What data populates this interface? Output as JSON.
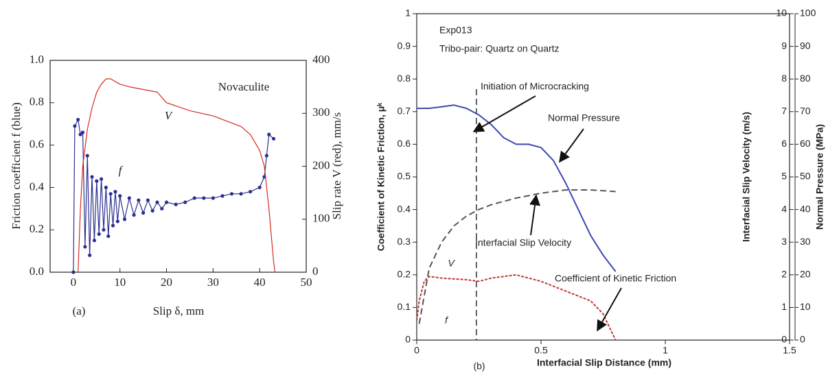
{
  "chart_data": [
    {
      "type": "line",
      "xlabel": "Slip δ, mm",
      "ylabel": "Friction coefficient f (blue)",
      "y2label": "Slip rate V (red), mm/s",
      "xlim": [
        -5,
        50
      ],
      "xticks": [
        0,
        10,
        20,
        30,
        40,
        50
      ],
      "ylim": [
        0,
        1
      ],
      "yticks": [
        {
          "value": 0,
          "label": "0.0"
        },
        {
          "value": 0.2,
          "label": "0.2"
        },
        {
          "value": 0.4,
          "label": "0.4"
        },
        {
          "value": 0.6,
          "label": "0.6"
        },
        {
          "value": 0.8,
          "label": "0.8"
        },
        {
          "value": 1,
          "label": "1.0"
        }
      ],
      "y2lim": [
        0,
        400
      ],
      "y2ticks": [
        0,
        100,
        200,
        300,
        400
      ],
      "annotations": [
        "Novaculite",
        "(a)"
      ],
      "series": [
        {
          "name": "f",
          "color": "#2b2f8f",
          "marker": true,
          "x": [
            0,
            0.3,
            1,
            1.5,
            2,
            2.5,
            3,
            3.5,
            4,
            4.5,
            5,
            5.5,
            6,
            6.5,
            7,
            7.5,
            8,
            8.5,
            9,
            9.5,
            10,
            11,
            12,
            13,
            14,
            15,
            16,
            17,
            18,
            19,
            20,
            22,
            24,
            26,
            28,
            30,
            32,
            34,
            36,
            38,
            40,
            41,
            41.5,
            42,
            43
          ],
          "values": [
            0,
            0.69,
            0.72,
            0.65,
            0.66,
            0.12,
            0.55,
            0.08,
            0.45,
            0.15,
            0.43,
            0.18,
            0.44,
            0.2,
            0.4,
            0.17,
            0.37,
            0.22,
            0.38,
            0.24,
            0.36,
            0.25,
            0.35,
            0.27,
            0.34,
            0.28,
            0.34,
            0.29,
            0.33,
            0.3,
            0.33,
            0.32,
            0.33,
            0.35,
            0.35,
            0.35,
            0.36,
            0.37,
            0.37,
            0.38,
            0.4,
            0.45,
            0.55,
            0.65,
            0.63
          ]
        },
        {
          "name": "V",
          "color": "#d42a1e",
          "axis": "y2",
          "x": [
            1,
            1.5,
            2,
            3,
            4,
            5,
            6,
            7,
            8,
            10,
            12,
            15,
            18,
            20,
            25,
            30,
            33,
            36,
            38,
            40,
            41,
            42,
            43,
            43.3
          ],
          "values": [
            0,
            120,
            200,
            270,
            310,
            340,
            355,
            365,
            365,
            355,
            350,
            345,
            340,
            320,
            305,
            295,
            285,
            275,
            260,
            230,
            200,
            120,
            20,
            0
          ]
        }
      ]
    },
    {
      "type": "line",
      "xlabel": "Interfacial Slip Distance (mm)",
      "ylabel": "Coefficient of Kinetic Friction, μᵏ",
      "y2label": "Interfacial Slip Velocity (m/s)",
      "y3label": "Normal Pressure (MPa)",
      "xlim": [
        0,
        1.5
      ],
      "xticks": [
        0,
        0.5,
        1,
        1.5
      ],
      "ylim": [
        0,
        1
      ],
      "yticks": [
        0,
        0.1,
        0.2,
        0.3,
        0.4,
        0.5,
        0.6,
        0.7,
        0.8,
        0.9,
        1
      ],
      "y2lim": [
        0,
        10
      ],
      "y2ticks": [
        0,
        1,
        2,
        3,
        4,
        5,
        6,
        7,
        8,
        9,
        10
      ],
      "y3lim": [
        0,
        100
      ],
      "y3ticks": [
        0,
        10,
        20,
        30,
        40,
        50,
        60,
        70,
        80,
        90,
        100
      ],
      "vline": 0.24,
      "annotations": [
        "Exp013",
        "Tribo-pair: Quartz on Quartz",
        "Initiation of Microcracking",
        "V",
        "f",
        "(b)"
      ],
      "series": [
        {
          "name": "Normal Pressure",
          "color": "#3a48b0",
          "axis": "y3",
          "x": [
            0,
            0.05,
            0.1,
            0.15,
            0.2,
            0.25,
            0.3,
            0.35,
            0.4,
            0.45,
            0.5,
            0.55,
            0.6,
            0.65,
            0.7,
            0.75,
            0.8
          ],
          "values": [
            71,
            71,
            71.5,
            72,
            71,
            69,
            66,
            62,
            60,
            60,
            59,
            55,
            48,
            40,
            32,
            26,
            21
          ]
        },
        {
          "name": "Interfacial Slip Velocity",
          "color": "#555555",
          "axis": "y2",
          "dash": true,
          "x": [
            0.01,
            0.05,
            0.1,
            0.15,
            0.2,
            0.25,
            0.3,
            0.4,
            0.5,
            0.6,
            0.7,
            0.8
          ],
          "values": [
            0.5,
            2.2,
            3,
            3.5,
            3.8,
            4,
            4.15,
            4.35,
            4.5,
            4.6,
            4.6,
            4.55
          ]
        },
        {
          "name": "Coefficient of Kinetic Friction",
          "color": "#c0392b",
          "dash": true,
          "x": [
            0,
            0.01,
            0.03,
            0.05,
            0.1,
            0.2,
            0.25,
            0.3,
            0.4,
            0.5,
            0.6,
            0.7,
            0.75,
            0.8
          ],
          "values": [
            0.06,
            0.12,
            0.18,
            0.195,
            0.19,
            0.185,
            0.18,
            0.19,
            0.2,
            0.18,
            0.15,
            0.12,
            0.08,
            0
          ]
        }
      ]
    }
  ]
}
